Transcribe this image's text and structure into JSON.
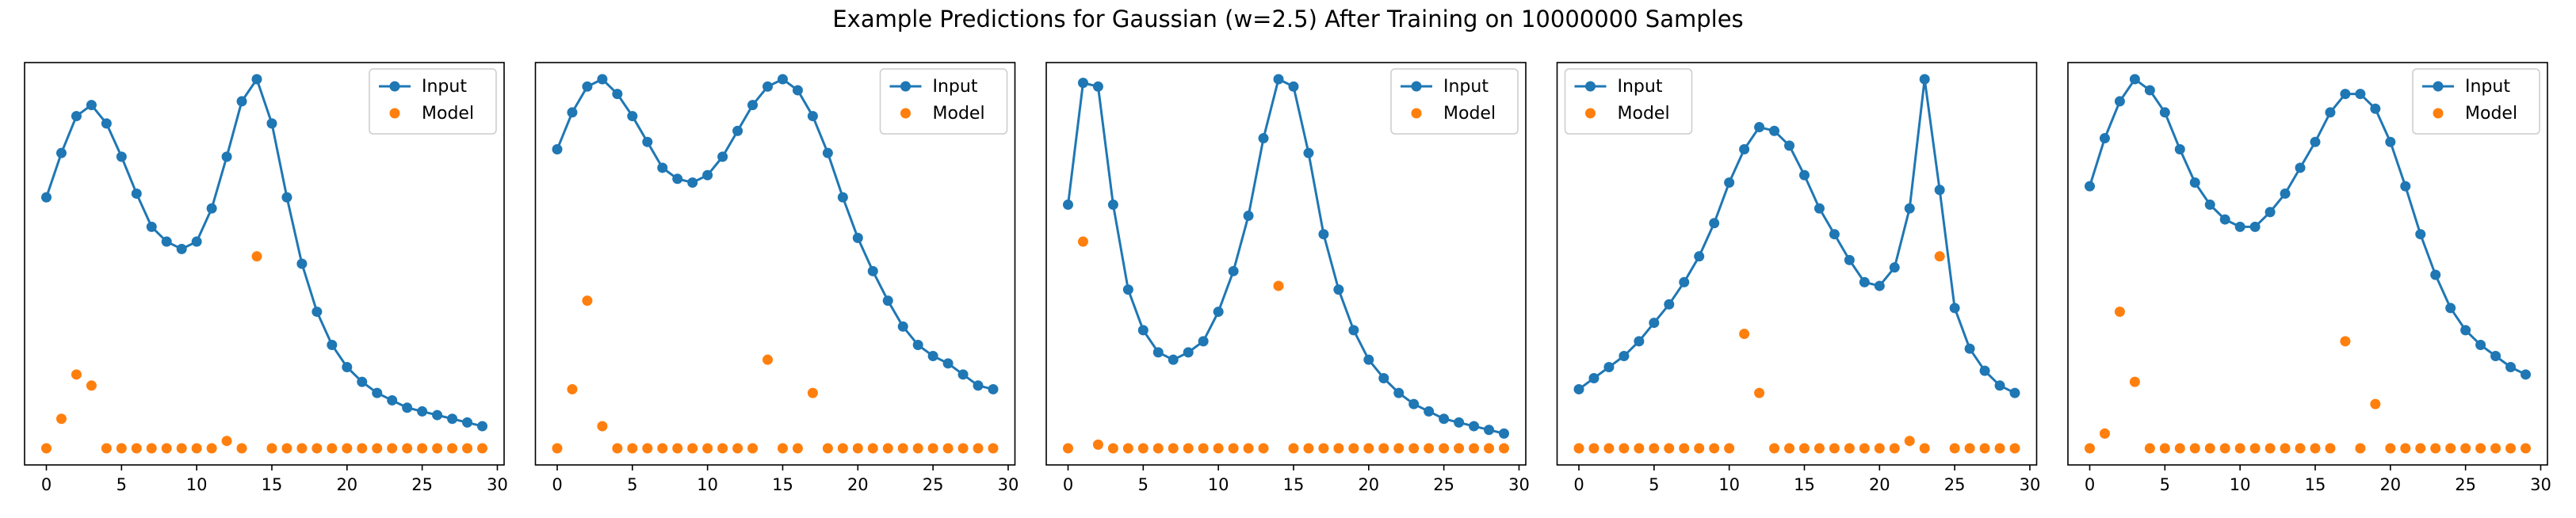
{
  "title": "Example Predictions for Gaussian (w=2.5) After Training on 10000000 Samples",
  "chart_data": [
    {
      "type": "line",
      "legend": "upper right",
      "xlim": [
        -1.45,
        30.45
      ],
      "ylim": [
        -0.045,
        1.045
      ],
      "xticks": [
        0,
        5,
        10,
        15,
        20,
        25,
        30
      ],
      "x": [
        0,
        1,
        2,
        3,
        4,
        5,
        6,
        7,
        8,
        9,
        10,
        11,
        12,
        13,
        14,
        15,
        16,
        17,
        18,
        19,
        20,
        21,
        22,
        23,
        24,
        25,
        26,
        27,
        28,
        29
      ],
      "series": [
        {
          "name": "Input",
          "color": "#1f77b4",
          "line": true,
          "values": [
            0.68,
            0.8,
            0.9,
            0.93,
            0.88,
            0.79,
            0.69,
            0.6,
            0.56,
            0.54,
            0.56,
            0.65,
            0.79,
            0.94,
            1.0,
            0.88,
            0.68,
            0.5,
            0.37,
            0.28,
            0.22,
            0.18,
            0.15,
            0.13,
            0.11,
            0.1,
            0.09,
            0.08,
            0.07,
            0.06
          ]
        },
        {
          "name": "Model",
          "color": "#ff7f0e",
          "line": false,
          "values": [
            0,
            0.08,
            0.2,
            0.17,
            0,
            0,
            0,
            0,
            0,
            0,
            0,
            0,
            0.02,
            0,
            0.52,
            0,
            0,
            0,
            0,
            0,
            0,
            0,
            0,
            0,
            0,
            0,
            0,
            0,
            0,
            0
          ]
        }
      ]
    },
    {
      "type": "line",
      "legend": "upper right",
      "xlim": [
        -1.45,
        30.45
      ],
      "ylim": [
        -0.045,
        1.045
      ],
      "xticks": [
        0,
        5,
        10,
        15,
        20,
        25,
        30
      ],
      "x": [
        0,
        1,
        2,
        3,
        4,
        5,
        6,
        7,
        8,
        9,
        10,
        11,
        12,
        13,
        14,
        15,
        16,
        17,
        18,
        19,
        20,
        21,
        22,
        23,
        24,
        25,
        26,
        27,
        28,
        29
      ],
      "series": [
        {
          "name": "Input",
          "color": "#1f77b4",
          "line": true,
          "values": [
            0.81,
            0.91,
            0.98,
            1.0,
            0.96,
            0.9,
            0.83,
            0.76,
            0.73,
            0.72,
            0.74,
            0.79,
            0.86,
            0.93,
            0.98,
            1.0,
            0.97,
            0.9,
            0.8,
            0.68,
            0.57,
            0.48,
            0.4,
            0.33,
            0.28,
            0.25,
            0.23,
            0.2,
            0.17,
            0.16
          ]
        },
        {
          "name": "Model",
          "color": "#ff7f0e",
          "line": false,
          "values": [
            0,
            0.16,
            0.4,
            0.06,
            0,
            0,
            0,
            0,
            0,
            0,
            0,
            0,
            0,
            0,
            0.24,
            0,
            0,
            0.15,
            0,
            0,
            0,
            0,
            0,
            0,
            0,
            0,
            0,
            0,
            0,
            0
          ]
        }
      ]
    },
    {
      "type": "line",
      "legend": "upper right",
      "xlim": [
        -1.45,
        30.45
      ],
      "ylim": [
        -0.045,
        1.045
      ],
      "xticks": [
        0,
        5,
        10,
        15,
        20,
        25,
        30
      ],
      "x": [
        0,
        1,
        2,
        3,
        4,
        5,
        6,
        7,
        8,
        9,
        10,
        11,
        12,
        13,
        14,
        15,
        16,
        17,
        18,
        19,
        20,
        21,
        22,
        23,
        24,
        25,
        26,
        27,
        28,
        29
      ],
      "series": [
        {
          "name": "Input",
          "color": "#1f77b4",
          "line": true,
          "values": [
            0.66,
            0.99,
            0.98,
            0.66,
            0.43,
            0.32,
            0.26,
            0.24,
            0.26,
            0.29,
            0.37,
            0.48,
            0.63,
            0.84,
            1.0,
            0.98,
            0.8,
            0.58,
            0.43,
            0.32,
            0.24,
            0.19,
            0.15,
            0.12,
            0.1,
            0.08,
            0.07,
            0.06,
            0.05,
            0.04
          ]
        },
        {
          "name": "Model",
          "color": "#ff7f0e",
          "line": false,
          "values": [
            0,
            0.56,
            0.01,
            0,
            0,
            0,
            0,
            0,
            0,
            0,
            0,
            0,
            0,
            0,
            0.44,
            0,
            0,
            0,
            0,
            0,
            0,
            0,
            0,
            0,
            0,
            0,
            0,
            0,
            0,
            0
          ]
        }
      ]
    },
    {
      "type": "line",
      "legend": "upper left",
      "xlim": [
        -1.45,
        30.45
      ],
      "ylim": [
        -0.045,
        1.045
      ],
      "xticks": [
        0,
        5,
        10,
        15,
        20,
        25,
        30
      ],
      "x": [
        0,
        1,
        2,
        3,
        4,
        5,
        6,
        7,
        8,
        9,
        10,
        11,
        12,
        13,
        14,
        15,
        16,
        17,
        18,
        19,
        20,
        21,
        22,
        23,
        24,
        25,
        26,
        27,
        28,
        29
      ],
      "series": [
        {
          "name": "Input",
          "color": "#1f77b4",
          "line": true,
          "values": [
            0.16,
            0.19,
            0.22,
            0.25,
            0.29,
            0.34,
            0.39,
            0.45,
            0.52,
            0.61,
            0.72,
            0.81,
            0.87,
            0.86,
            0.82,
            0.74,
            0.65,
            0.58,
            0.51,
            0.45,
            0.44,
            0.49,
            0.65,
            1.0,
            0.7,
            0.38,
            0.27,
            0.21,
            0.17,
            0.15
          ]
        },
        {
          "name": "Model",
          "color": "#ff7f0e",
          "line": false,
          "values": [
            0,
            0,
            0,
            0,
            0,
            0,
            0,
            0,
            0,
            0,
            0,
            0.31,
            0.15,
            0,
            0,
            0,
            0,
            0,
            0,
            0,
            0,
            0,
            0.02,
            0,
            0.52,
            0,
            0,
            0,
            0,
            0
          ]
        }
      ]
    },
    {
      "type": "line",
      "legend": "upper right",
      "xlim": [
        -1.45,
        30.45
      ],
      "ylim": [
        -0.045,
        1.045
      ],
      "xticks": [
        0,
        5,
        10,
        15,
        20,
        25,
        30
      ],
      "x": [
        0,
        1,
        2,
        3,
        4,
        5,
        6,
        7,
        8,
        9,
        10,
        11,
        12,
        13,
        14,
        15,
        16,
        17,
        18,
        19,
        20,
        21,
        22,
        23,
        24,
        25,
        26,
        27,
        28,
        29
      ],
      "series": [
        {
          "name": "Input",
          "color": "#1f77b4",
          "line": true,
          "values": [
            0.71,
            0.84,
            0.94,
            1.0,
            0.97,
            0.91,
            0.81,
            0.72,
            0.66,
            0.62,
            0.6,
            0.6,
            0.64,
            0.69,
            0.76,
            0.83,
            0.91,
            0.96,
            0.96,
            0.92,
            0.83,
            0.71,
            0.58,
            0.47,
            0.38,
            0.32,
            0.28,
            0.25,
            0.22,
            0.2
          ]
        },
        {
          "name": "Model",
          "color": "#ff7f0e",
          "line": false,
          "values": [
            0,
            0.04,
            0.37,
            0.18,
            0,
            0,
            0,
            0,
            0,
            0,
            0,
            0,
            0,
            0,
            0,
            0,
            0,
            0.29,
            0,
            0.12,
            0,
            0,
            0,
            0,
            0,
            0,
            0,
            0,
            0,
            0
          ]
        }
      ]
    }
  ]
}
